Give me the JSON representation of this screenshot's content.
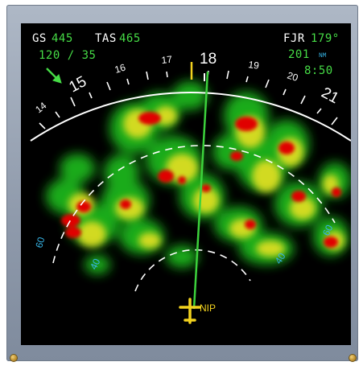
{
  "nd": {
    "gs_label": "GS",
    "gs_value": "445",
    "tas_label": "TAS",
    "tas_value": "465",
    "wind": "120 / 35",
    "waypoint_name": "FJR",
    "waypoint_bearing": "179°",
    "waypoint_distance": "201",
    "distance_unit": "NM",
    "eta": "8:50",
    "heading_labels": [
      "14",
      "15",
      "16",
      "17",
      "18",
      "19",
      "20",
      "21"
    ],
    "range_labels": [
      "60",
      "40",
      "40",
      "60"
    ],
    "position_label": "NIP"
  },
  "colors": {
    "heavy": "#e00000",
    "moderate": "#e6e020",
    "light": "#1fb51f",
    "track_line": "#3cd23c",
    "aircraft": "#f2d21e",
    "range_text": "#36b4e6",
    "header_green": "#46dc46"
  }
}
